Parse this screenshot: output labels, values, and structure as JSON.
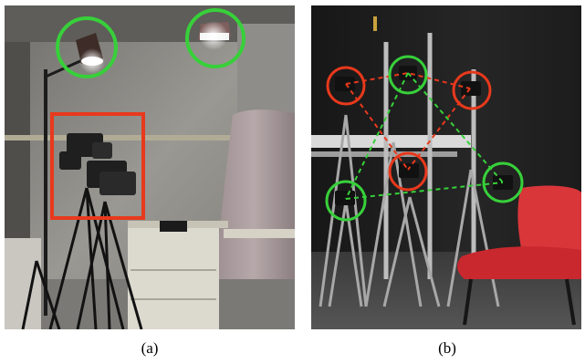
{
  "figure": {
    "panels": [
      {
        "id": "a",
        "caption": "(a)",
        "content": "photo-lighting-camera-rig",
        "markers": {
          "lamps": "green-circle",
          "camera-cluster": "red-box"
        }
      },
      {
        "id": "b",
        "caption": "(b)",
        "content": "photo-multi-camera-tripod-rig",
        "markers": {
          "cameras-group-1": "red-circle",
          "cameras-group-2": "green-circle",
          "links-1": "red-dashed-line",
          "links-2": "green-dashed-line"
        }
      }
    ],
    "colors": {
      "highlight_green": "#37d03a",
      "highlight_red": "#e8391c",
      "chair_red": "#d9363a",
      "studio_wall_b": "#1c1c1c",
      "room_wall_a": "#8a8a85"
    }
  }
}
